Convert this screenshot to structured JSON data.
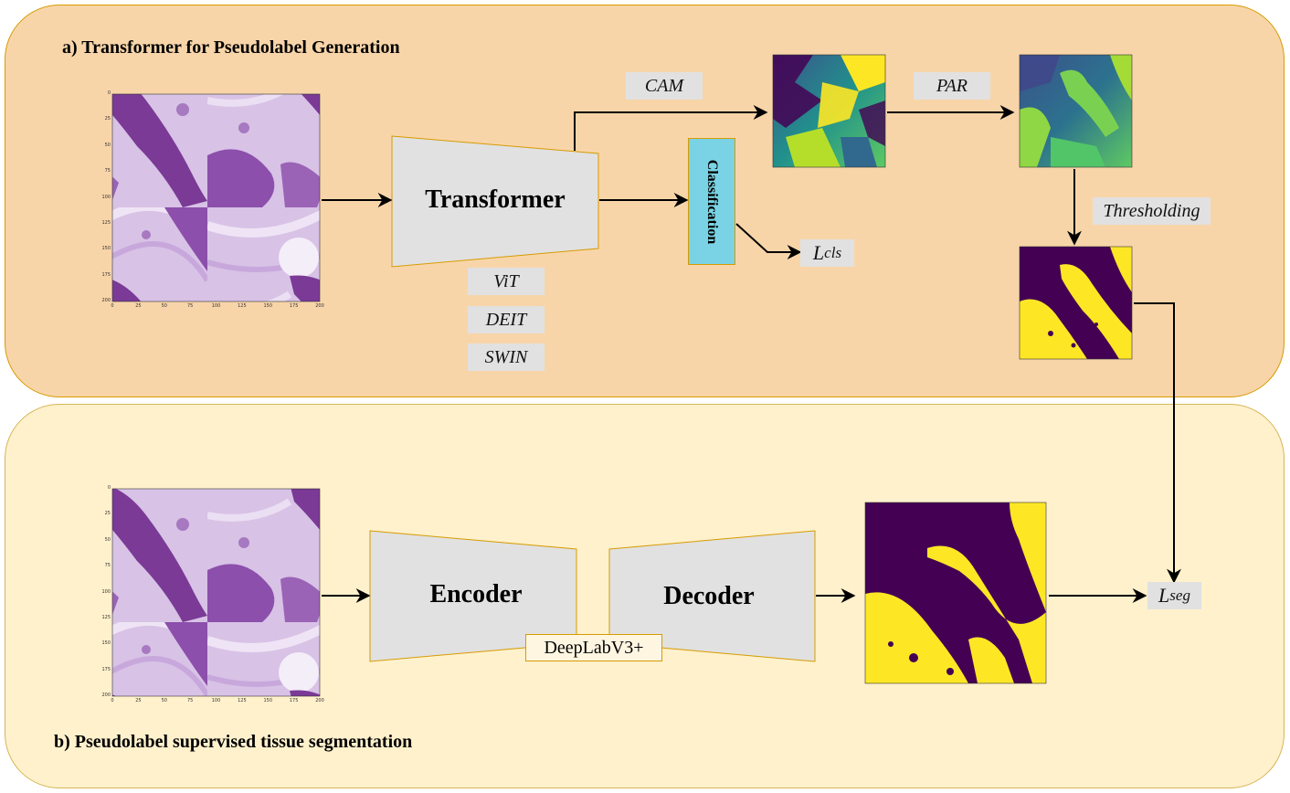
{
  "panel_a": {
    "title": "a)  Transformer for Pseudolabel Generation"
  },
  "panel_b": {
    "title": "b) Pseudolabel supervised tissue segmentation"
  },
  "transformer": {
    "label": "Transformer"
  },
  "backbones": [
    "ViT",
    "DEIT",
    "SWIN"
  ],
  "classification": {
    "label": "Classification"
  },
  "cam_label": "CAM",
  "par_label": "PAR",
  "thresholding_label": "Thresholding",
  "loss_cls": {
    "main": "L",
    "sub": "cls"
  },
  "loss_seg": {
    "main": "L",
    "sub": "seg"
  },
  "encoder": {
    "label": "Encoder"
  },
  "decoder": {
    "label": "Decoder"
  },
  "deeplab": {
    "label": "DeepLabV3+"
  },
  "input_image": {
    "y_ticks": [
      "0",
      "25",
      "50",
      "75",
      "100",
      "125",
      "150",
      "175",
      "200"
    ],
    "x_ticks": [
      "0",
      "25",
      "50",
      "75",
      "100",
      "125",
      "150",
      "175",
      "200"
    ]
  },
  "colors": {
    "panel_a_bg": "#f8d5a9",
    "panel_b_bg": "#fff1cc",
    "classification_fill": "#79d3e4",
    "viridis_dark": "#440154",
    "viridis_yellow": "#fde725",
    "tissue_purple": "#8a4aa6",
    "tissue_light": "#e3d2ee"
  }
}
